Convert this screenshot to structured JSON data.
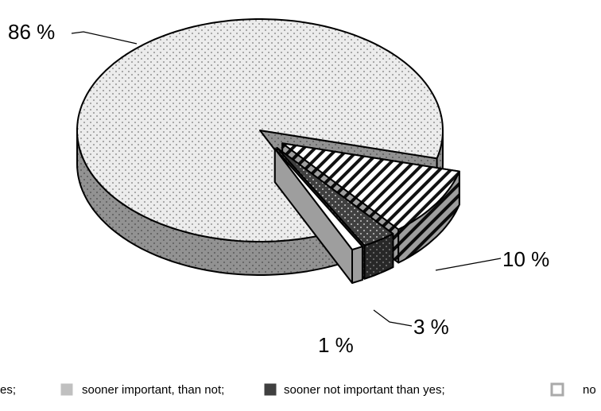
{
  "chart_data": {
    "type": "pie",
    "series": [
      {
        "name": "es;",
        "color": "#ececec",
        "values": [
          86
        ],
        "value_labels": [
          "86 %"
        ]
      },
      {
        "name": "sooner important, than not;",
        "color": "#c0c0c0",
        "values": [
          10
        ],
        "value_labels": [
          "10 %"
        ]
      },
      {
        "name": "sooner not important than yes;",
        "color": "#404040",
        "values": [
          3
        ],
        "value_labels": [
          "3 %"
        ]
      },
      {
        "name": "no",
        "color": "#ffffff",
        "values": [
          1
        ],
        "value_labels": [
          "1 %"
        ]
      }
    ]
  }
}
